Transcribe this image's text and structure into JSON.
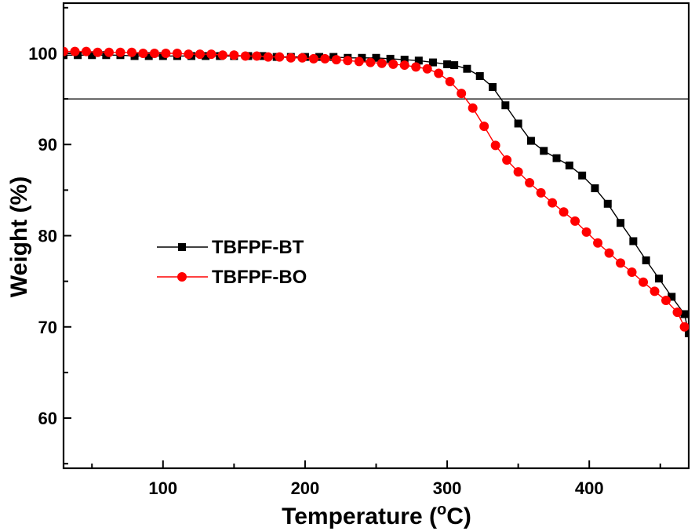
{
  "chart_data": {
    "type": "line",
    "xlabel": "Temperature (",
    "xlabel_sup": "o",
    "xlabel_end": "C)",
    "ylabel": "Weight (%)",
    "xlim": [
      30,
      470
    ],
    "ylim": [
      54.5,
      105.5
    ],
    "xticks": [
      100,
      200,
      300,
      400
    ],
    "yticks": [
      60,
      70,
      80,
      90,
      100
    ],
    "hline": 95,
    "legend_position": "center-left",
    "series": [
      {
        "name": "TBFPF-BT",
        "marker": "square",
        "color": "#000000",
        "x": [
          30,
          40,
          50,
          60,
          70,
          80,
          90,
          100,
          110,
          120,
          130,
          140,
          150,
          160,
          170,
          180,
          190,
          200,
          210,
          220,
          230,
          240,
          250,
          260,
          270,
          280,
          290,
          300,
          305,
          314,
          323,
          332,
          341,
          350,
          359,
          368,
          377,
          386,
          395,
          404,
          413,
          422,
          431,
          440,
          449,
          458,
          467,
          470
        ],
        "y": [
          99.8,
          99.8,
          99.8,
          99.8,
          99.8,
          99.7,
          99.7,
          99.7,
          99.7,
          99.7,
          99.7,
          99.7,
          99.7,
          99.7,
          99.7,
          99.6,
          99.6,
          99.6,
          99.6,
          99.6,
          99.5,
          99.5,
          99.5,
          99.4,
          99.3,
          99.2,
          99.0,
          98.8,
          98.7,
          98.3,
          97.5,
          96.3,
          94.3,
          92.3,
          90.4,
          89.3,
          88.5,
          87.7,
          86.6,
          85.2,
          83.5,
          81.4,
          79.4,
          77.3,
          75.3,
          73.3,
          71.4,
          69.3
        ]
      },
      {
        "name": "TBFPF-BO",
        "marker": "circle",
        "color": "#ff0000",
        "x": [
          30,
          38,
          46,
          54,
          62,
          70,
          78,
          86,
          94,
          102,
          110,
          118,
          126,
          134,
          142,
          150,
          158,
          166,
          174,
          182,
          190,
          198,
          206,
          214,
          222,
          230,
          238,
          246,
          254,
          262,
          270,
          278,
          286,
          294,
          302,
          310,
          318,
          326,
          334,
          342,
          350,
          358,
          366,
          374,
          382,
          390,
          398,
          406,
          414,
          422,
          430,
          438,
          446,
          454,
          462,
          467
        ],
        "y": [
          100.2,
          100.2,
          100.2,
          100.1,
          100.1,
          100.1,
          100.1,
          100.0,
          100.0,
          100.0,
          100.0,
          99.9,
          99.9,
          99.9,
          99.8,
          99.8,
          99.7,
          99.7,
          99.6,
          99.6,
          99.5,
          99.5,
          99.4,
          99.4,
          99.3,
          99.2,
          99.1,
          99.0,
          98.9,
          98.8,
          98.7,
          98.5,
          98.3,
          97.8,
          96.9,
          95.6,
          94.0,
          92.0,
          89.9,
          88.3,
          87.0,
          85.8,
          84.7,
          83.6,
          82.6,
          81.6,
          80.4,
          79.2,
          78.1,
          77.0,
          76.0,
          74.9,
          73.9,
          72.9,
          71.6,
          70.0
        ]
      }
    ]
  }
}
